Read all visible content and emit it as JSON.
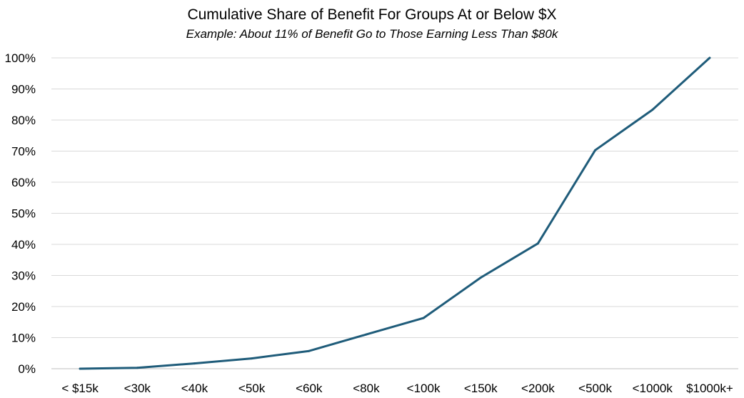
{
  "chart_data": {
    "type": "line",
    "title": "Cumulative Share of Benefit For Groups At or Below $X",
    "subtitle": "Example:  About 11% of Benefit Go to Those Earning Less Than $80k",
    "xlabel": "",
    "ylabel": "",
    "categories": [
      "< $15k",
      "<30k",
      "<40k",
      "<50k",
      "<60k",
      "<80k",
      "<100k",
      "<150k",
      "<200k",
      "<500k",
      "<1000k",
      "$1000k+"
    ],
    "series": [
      {
        "values": [
          0.0,
          0.3,
          1.7,
          3.3,
          5.7,
          11.0,
          16.3,
          29.3,
          40.3,
          70.3,
          83.3,
          100.0
        ]
      }
    ],
    "ylim": [
      0,
      100
    ],
    "yticks": [
      "0%",
      "10%",
      "20%",
      "30%",
      "40%",
      "50%",
      "60%",
      "70%",
      "80%",
      "90%",
      "100%"
    ],
    "y_unit": "%",
    "grid": "horizontal",
    "legend": "none",
    "line_color": "#1f5c7a",
    "grid_color": "#d9d9d9",
    "axis_color": "#bfbfbf"
  }
}
